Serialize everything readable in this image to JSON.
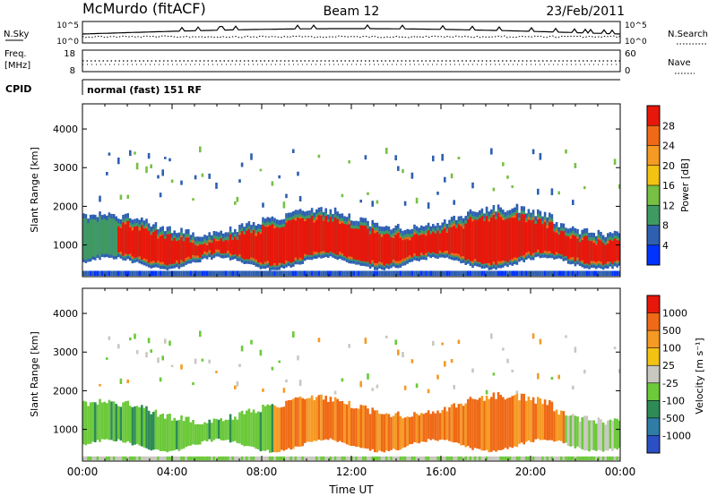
{
  "header": {
    "station": "McMurdo (fitACF)",
    "beam": "Beam 12",
    "date": "23/Feb/2011"
  },
  "top_panels": {
    "nsky_label": "N.Sky",
    "nsky_ticks": [
      "10^5",
      "10^0"
    ],
    "nsearch_label": "N.Search",
    "nsearch_ticks": [
      "10^5",
      "10^0"
    ],
    "freq_label_line1": "Freq.",
    "freq_label_line2": "[MHz]",
    "freq_ticks": [
      "18",
      "8"
    ],
    "nave_label": "Nave",
    "nave_ticks": [
      "60",
      "0"
    ],
    "cpid_label": "CPID",
    "cpid_text": "normal (fast) 151 RF"
  },
  "chart_data": [
    {
      "type": "heatmap",
      "name": "power",
      "ylabel": "Slant Range [km]",
      "ytick_labels": [
        "4000",
        "3000",
        "2000",
        "1000"
      ],
      "yticks": [
        4000,
        3000,
        2000,
        1000
      ],
      "ylim": [
        180,
        4650
      ],
      "xlabel": "",
      "xtick_labels": [
        "00:00",
        "04:00",
        "08:00",
        "12:00",
        "16:00",
        "20:00",
        "00:00"
      ],
      "xlim_hours": [
        0,
        24
      ],
      "colorbar": {
        "label": "Power [dB]",
        "tick_labels": [
          "28",
          "24",
          "20",
          "16",
          "12",
          "8",
          "4"
        ],
        "colors": [
          "#0033ff",
          "#2e5fb0",
          "#3f9a62",
          "#77c043",
          "#f2c313",
          "#f59a24",
          "#ef6a16",
          "#e8170b"
        ]
      }
    },
    {
      "type": "heatmap",
      "name": "velocity",
      "ylabel": "Slant Range [km]",
      "ytick_labels": [
        "4000",
        "3000",
        "2000",
        "1000"
      ],
      "yticks": [
        4000,
        3000,
        2000,
        1000
      ],
      "ylim": [
        180,
        4650
      ],
      "xlabel": "Time UT",
      "xtick_labels": [
        "00:00",
        "04:00",
        "08:00",
        "12:00",
        "16:00",
        "20:00",
        "00:00"
      ],
      "xlim_hours": [
        0,
        24
      ],
      "colorbar": {
        "label": "Velocity [m s⁻¹]",
        "tick_labels": [
          "1000",
          "500",
          "100",
          "25",
          "-25",
          "-100",
          "-500",
          "-1000"
        ],
        "colors": [
          "#2b4fc4",
          "#2f7da6",
          "#2e8b57",
          "#6cc93a",
          "#c8c8c0",
          "#f2c313",
          "#f59a24",
          "#ef6a16",
          "#e8170b"
        ]
      }
    }
  ]
}
